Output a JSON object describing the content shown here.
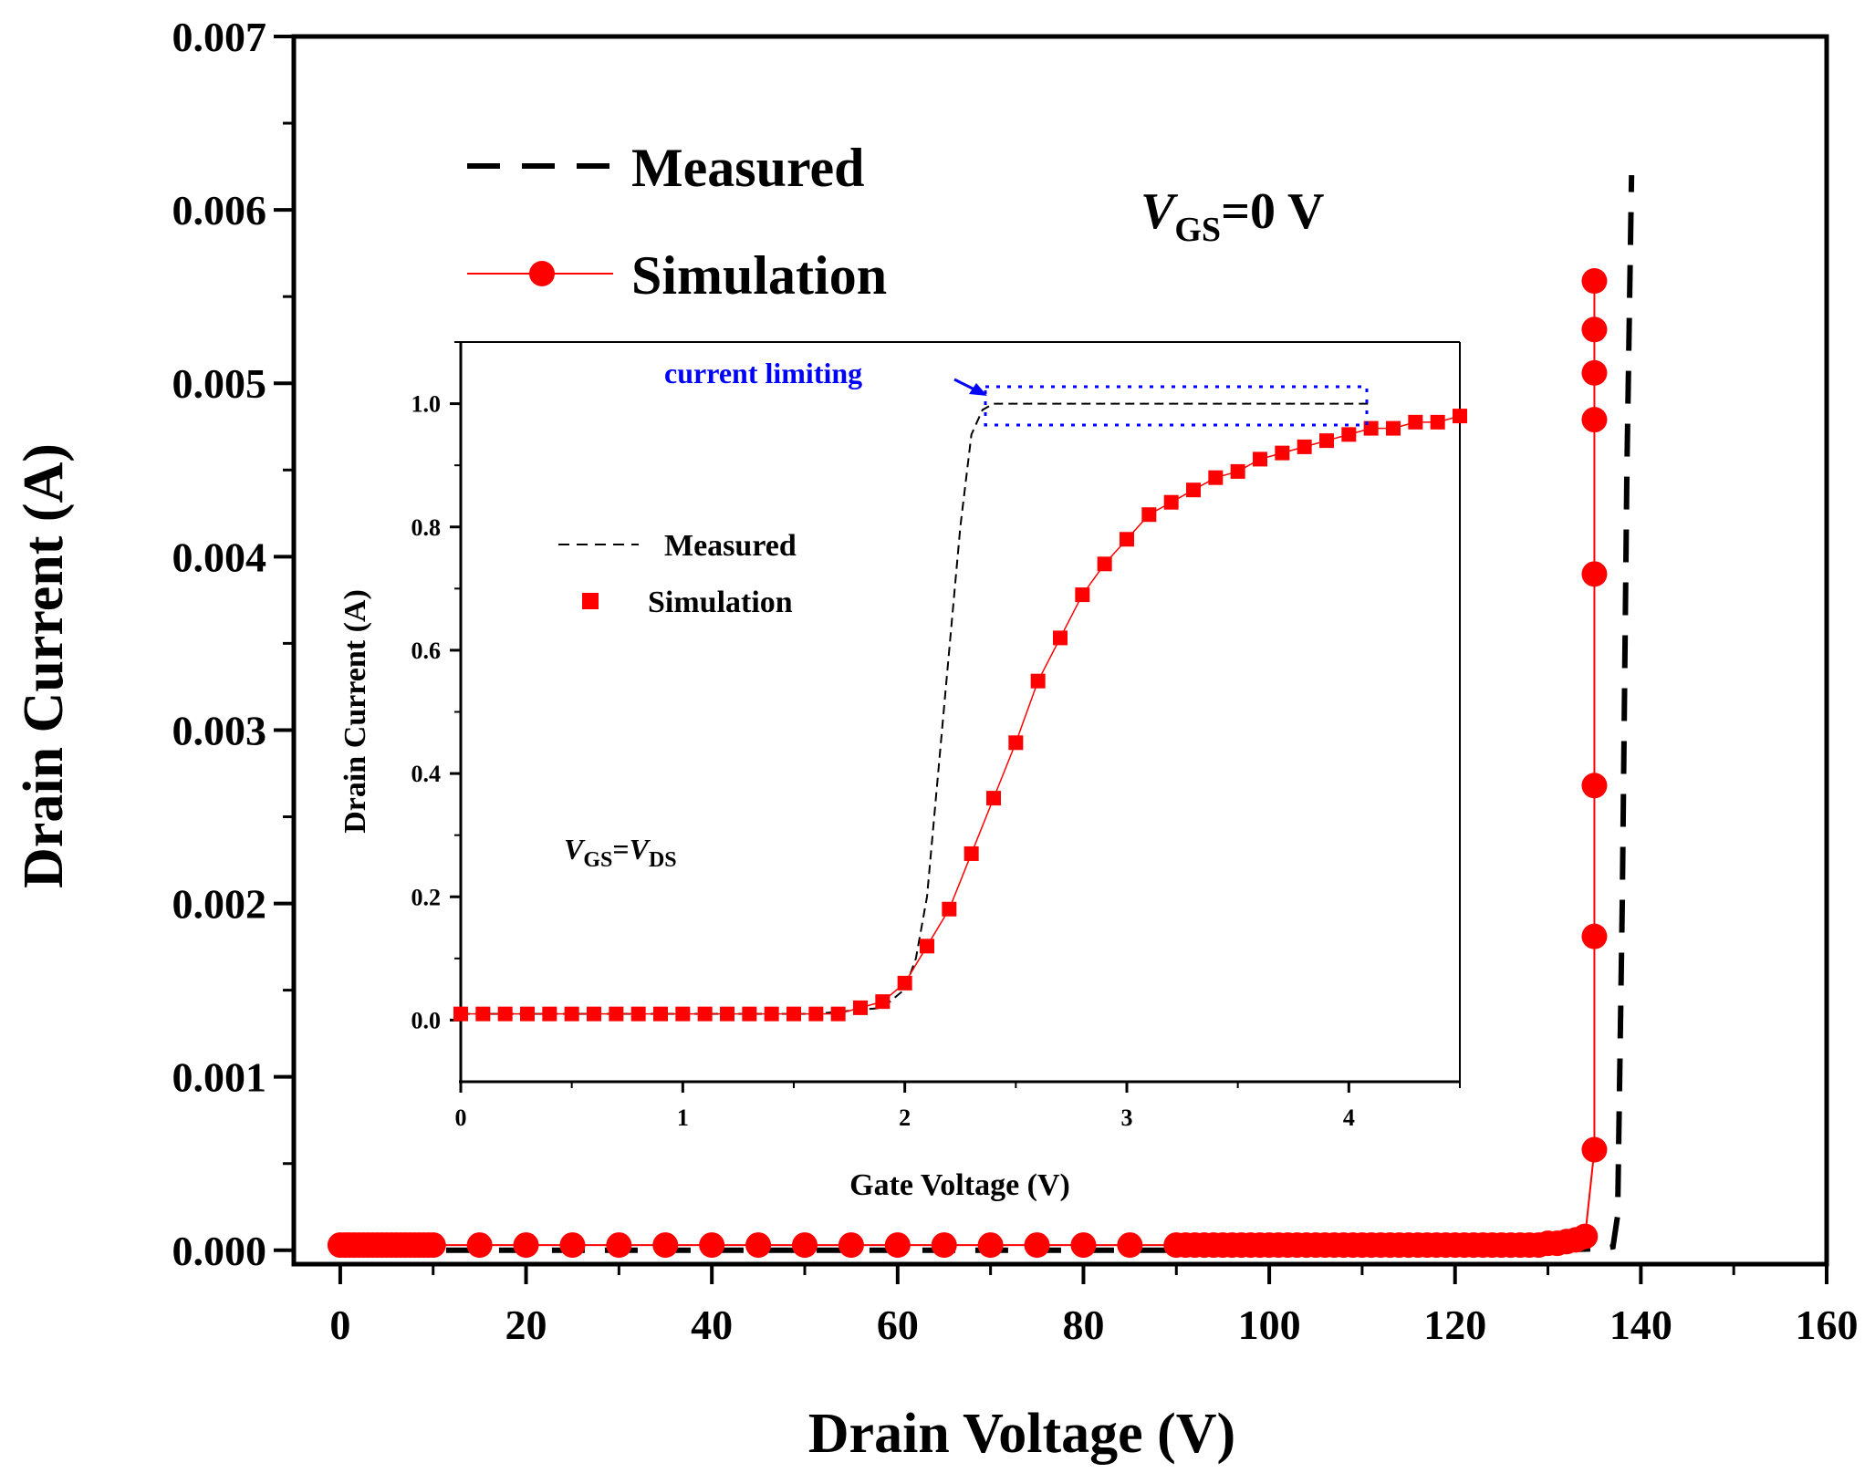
{
  "chart_data": [
    {
      "type": "line",
      "role": "main",
      "title": "",
      "xlabel": "Drain Voltage (V)",
      "ylabel": "Drain Current (A)",
      "xlim": [
        -5,
        160
      ],
      "ylim": [
        -8e-05,
        0.007
      ],
      "xticks": [
        0,
        20,
        40,
        60,
        80,
        100,
        120,
        140,
        160
      ],
      "xtick_labels": [
        "0",
        "20",
        "40",
        "60",
        "80",
        "100",
        "120",
        "140",
        "160"
      ],
      "yticks": [
        0,
        0.001,
        0.002,
        0.003,
        0.004,
        0.005,
        0.006,
        0.007
      ],
      "ytick_labels": [
        "0.000",
        "0.001",
        "0.002",
        "0.003",
        "0.004",
        "0.005",
        "0.006",
        "0.007"
      ],
      "annotation": {
        "v": "V",
        "sub": "GS",
        "rest": "=0 V"
      },
      "legend": {
        "position": "top-left",
        "entries": [
          "Measured",
          "Simulation"
        ]
      },
      "series": [
        {
          "name": "Measured",
          "style": "dashed",
          "color": "#000000",
          "x": [
            0,
            20,
            40,
            60,
            80,
            100,
            120,
            133,
            136,
            137,
            137.5,
            138,
            138.5,
            139
          ],
          "y": [
            0,
            0,
            0,
            0,
            0,
            0,
            0,
            5e-06,
            1e-05,
            2e-05,
            0.0002,
            0.002,
            0.0045,
            0.0062
          ]
        },
        {
          "name": "Simulation",
          "style": "line-circle",
          "color": "#ff0000",
          "x": [
            0,
            0.5,
            1,
            1.5,
            2,
            2.5,
            3,
            3.5,
            4,
            4.5,
            5,
            5.5,
            6,
            6.5,
            7,
            7.5,
            8,
            8.5,
            9,
            9.5,
            10,
            15,
            20,
            25,
            30,
            35,
            40,
            45,
            50,
            55,
            60,
            65,
            70,
            75,
            80,
            85,
            90,
            91,
            92,
            93,
            94,
            95,
            96,
            97,
            98,
            99,
            100,
            101,
            102,
            103,
            104,
            105,
            106,
            107,
            108,
            109,
            110,
            111,
            112,
            113,
            114,
            115,
            116,
            117,
            118,
            119,
            120,
            121,
            122,
            123,
            124,
            125,
            126,
            127,
            128,
            129,
            130,
            131,
            132,
            133,
            134,
            135,
            135,
            135,
            135,
            135,
            135,
            135,
            135
          ],
          "y": [
            3e-05,
            3e-05,
            3e-05,
            3e-05,
            3e-05,
            3e-05,
            3e-05,
            3e-05,
            3e-05,
            3e-05,
            3e-05,
            3e-05,
            3e-05,
            3e-05,
            3e-05,
            3e-05,
            3e-05,
            3e-05,
            3e-05,
            3e-05,
            3e-05,
            3e-05,
            3e-05,
            3e-05,
            3e-05,
            3e-05,
            3e-05,
            3e-05,
            3e-05,
            3e-05,
            3e-05,
            3e-05,
            3e-05,
            3e-05,
            3e-05,
            3e-05,
            3e-05,
            3e-05,
            3e-05,
            3e-05,
            3e-05,
            3e-05,
            3e-05,
            3e-05,
            3e-05,
            3e-05,
            3e-05,
            3e-05,
            3e-05,
            3e-05,
            3e-05,
            3e-05,
            3e-05,
            3e-05,
            3e-05,
            3e-05,
            3e-05,
            3e-05,
            3e-05,
            3e-05,
            3e-05,
            3e-05,
            3e-05,
            3e-05,
            3e-05,
            3e-05,
            3e-05,
            3e-05,
            3e-05,
            3e-05,
            3e-05,
            3e-05,
            3e-05,
            3e-05,
            3e-05,
            3e-05,
            4e-05,
            4e-05,
            5e-05,
            6e-05,
            8e-05,
            0.00058,
            0.00181,
            0.00268,
            0.0039,
            0.00479,
            0.00506,
            0.00531,
            0.00559
          ]
        }
      ]
    },
    {
      "type": "line",
      "role": "inset",
      "title": "",
      "xlabel": "Gate Voltage (V)",
      "ylabel": "Drain Current (A)",
      "xlim": [
        0,
        4.5
      ],
      "ylim": [
        -0.1,
        1.1
      ],
      "xticks": [
        0,
        1,
        2,
        3,
        4
      ],
      "xtick_labels": [
        "0",
        "1",
        "2",
        "3",
        "4"
      ],
      "yticks": [
        0,
        0.2,
        0.4,
        0.6,
        0.8,
        1.0
      ],
      "ytick_labels": [
        "0.0",
        "0.2",
        "0.4",
        "0.6",
        "0.8",
        "1.0"
      ],
      "annotation": {
        "v1": "V",
        "sub1": "GS",
        "eq": "=",
        "v2": "V",
        "sub2": "DS"
      },
      "callout": {
        "text": "current limiting",
        "color": "#0000ff"
      },
      "legend": {
        "position": "middle-left",
        "entries": [
          "Measured",
          "Simulation"
        ]
      },
      "series": [
        {
          "name": "Measured",
          "style": "dashed",
          "color": "#000000",
          "x": [
            0,
            1.0,
            1.6,
            1.9,
            2.0,
            2.05,
            2.1,
            2.15,
            2.2,
            2.25,
            2.3,
            2.35,
            2.4,
            3.0,
            4.1
          ],
          "y": [
            0.01,
            0.01,
            0.01,
            0.02,
            0.05,
            0.1,
            0.2,
            0.4,
            0.6,
            0.8,
            0.95,
            0.99,
            1.0,
            1.0,
            1.0
          ]
        },
        {
          "name": "Simulation",
          "style": "line-square",
          "color": "#ff0000",
          "x": [
            0,
            0.1,
            0.2,
            0.3,
            0.4,
            0.5,
            0.6,
            0.7,
            0.8,
            0.9,
            1.0,
            1.1,
            1.2,
            1.3,
            1.4,
            1.5,
            1.6,
            1.7,
            1.8,
            1.9,
            2.0,
            2.1,
            2.2,
            2.3,
            2.4,
            2.5,
            2.6,
            2.7,
            2.8,
            2.9,
            3.0,
            3.1,
            3.2,
            3.3,
            3.4,
            3.5,
            3.6,
            3.7,
            3.8,
            3.9,
            4.0,
            4.1,
            4.2,
            4.3,
            4.4,
            4.5
          ],
          "y": [
            0.01,
            0.01,
            0.01,
            0.01,
            0.01,
            0.01,
            0.01,
            0.01,
            0.01,
            0.01,
            0.01,
            0.01,
            0.01,
            0.01,
            0.01,
            0.01,
            0.01,
            0.01,
            0.02,
            0.03,
            0.06,
            0.12,
            0.18,
            0.27,
            0.36,
            0.45,
            0.55,
            0.62,
            0.69,
            0.74,
            0.78,
            0.82,
            0.84,
            0.86,
            0.88,
            0.89,
            0.91,
            0.92,
            0.93,
            0.94,
            0.95,
            0.96,
            0.96,
            0.97,
            0.97,
            0.98
          ]
        }
      ]
    }
  ]
}
